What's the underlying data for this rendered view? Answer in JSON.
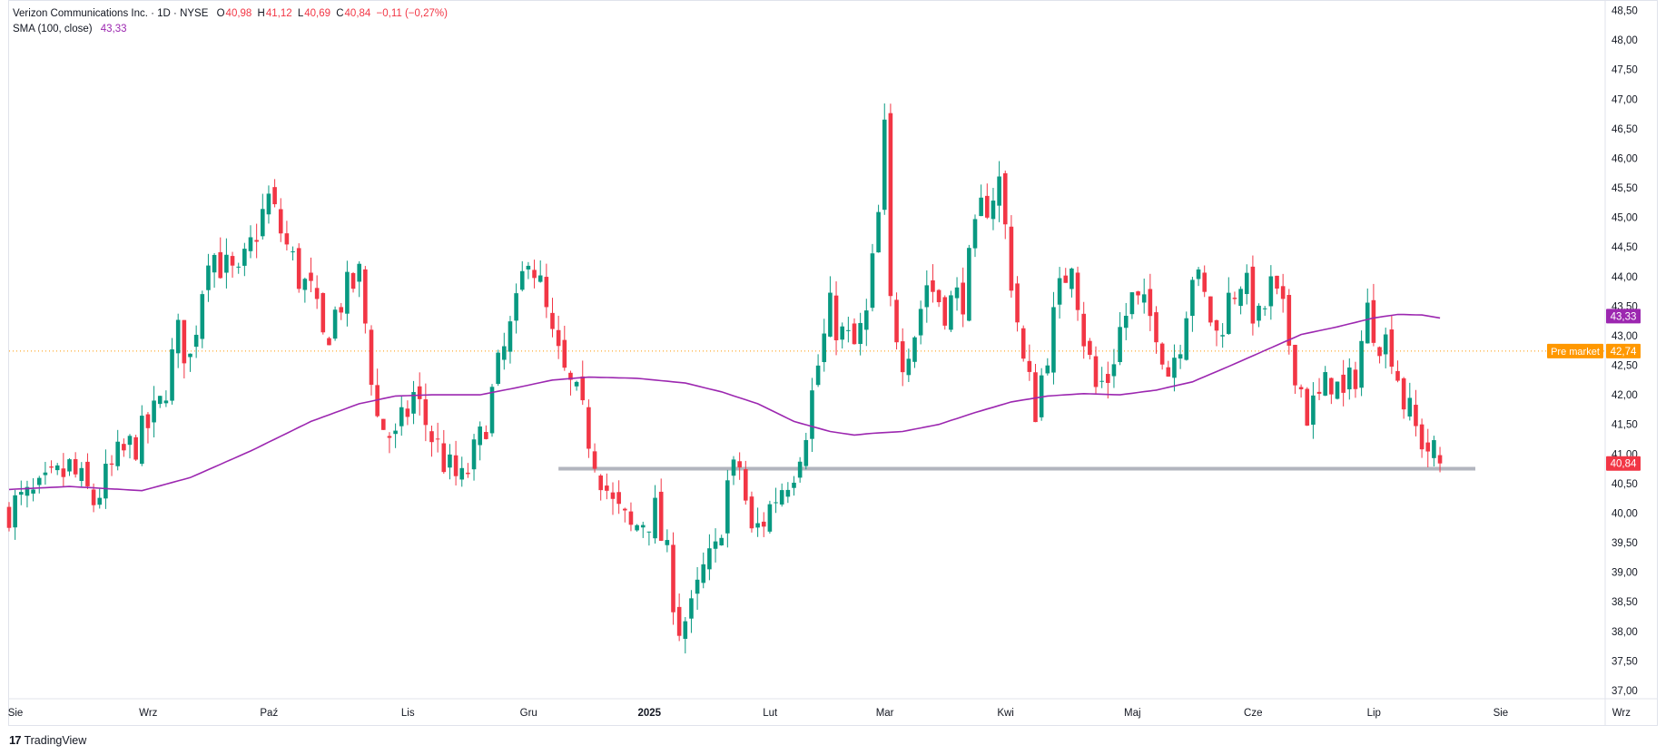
{
  "legend": {
    "title": "Verizon Communications Inc. · 1D · NYSE",
    "open_label": "O",
    "open": "40,98",
    "high_label": "H",
    "high": "41,12",
    "low_label": "L",
    "low": "40,69",
    "close_label": "C",
    "close": "40,84",
    "change": "−0,11 (−0,27%)",
    "sma_label": "SMA (100, close)",
    "sma_value": "43,33"
  },
  "price_tags": {
    "sma": "43,33",
    "premarket_label": "Pre market",
    "premarket": "42,74",
    "last": "40,84"
  },
  "brand": {
    "logo": "17",
    "name": "TradingView"
  },
  "colors": {
    "up": "#089981",
    "down": "#f23645",
    "sma": "#9c27b0",
    "premarket": "#ff9800",
    "support": "#b2b5be",
    "axis_text": "#131722",
    "grid": "#f0f3fa"
  },
  "chart_data": {
    "type": "candlestick",
    "title": "Verizon Communications Inc. · 1D · NYSE",
    "ylim": [
      36.6,
      48.6
    ],
    "y_ticks": [
      "48,50",
      "48,00",
      "47,50",
      "47,00",
      "46,50",
      "46,00",
      "45,50",
      "45,00",
      "44,50",
      "44,00",
      "43,50",
      "43,00",
      "42,50",
      "42,00",
      "41,50",
      "41,00",
      "40,50",
      "40,00",
      "39,50",
      "39,00",
      "38,50",
      "38,00",
      "37,50",
      "37,00"
    ],
    "x_ticks": [
      {
        "label": "Sie",
        "bold": false,
        "idx": 0
      },
      {
        "label": "Wrz",
        "bold": false,
        "idx": 22
      },
      {
        "label": "Paź",
        "bold": false,
        "idx": 42
      },
      {
        "label": "Lis",
        "bold": false,
        "idx": 65
      },
      {
        "label": "Gru",
        "bold": false,
        "idx": 85
      },
      {
        "label": "2025",
        "bold": true,
        "idx": 105
      },
      {
        "label": "Lut",
        "bold": false,
        "idx": 125
      },
      {
        "label": "Mar",
        "bold": false,
        "idx": 144
      },
      {
        "label": "Kwi",
        "bold": false,
        "idx": 164
      },
      {
        "label": "Maj",
        "bold": false,
        "idx": 185
      },
      {
        "label": "Cze",
        "bold": false,
        "idx": 205
      },
      {
        "label": "Lip",
        "bold": false,
        "idx": 225
      },
      {
        "label": "Sie",
        "bold": false,
        "idx": 246
      },
      {
        "label": "Wrz",
        "bold": false,
        "idx": 266
      }
    ],
    "support_level": 40.75,
    "premarket_price": 42.74,
    "sma_last": 43.33,
    "close_path": [
      [
        0,
        40.1
      ],
      [
        5,
        40.3
      ],
      [
        10,
        40.75
      ],
      [
        14,
        40.2
      ],
      [
        18,
        40.9
      ],
      [
        22,
        41.3
      ],
      [
        25,
        41.8
      ],
      [
        28,
        43.0
      ],
      [
        30,
        42.6
      ],
      [
        33,
        44.5
      ],
      [
        36,
        44.1
      ],
      [
        38,
        43.9
      ],
      [
        41,
        44.8
      ],
      [
        43,
        45.3
      ],
      [
        46,
        44.5
      ],
      [
        48,
        44.0
      ],
      [
        50,
        43.7
      ],
      [
        52,
        42.9
      ],
      [
        55,
        43.6
      ],
      [
        58,
        44.0
      ],
      [
        61,
        41.6
      ],
      [
        64,
        41.2
      ],
      [
        67,
        42.0
      ],
      [
        70,
        41.3
      ],
      [
        73,
        40.7
      ],
      [
        75,
        40.5
      ],
      [
        78,
        41.2
      ],
      [
        81,
        42.4
      ],
      [
        84,
        43.4
      ],
      [
        86,
        44.5
      ],
      [
        88,
        43.8
      ],
      [
        90,
        42.9
      ],
      [
        92,
        42.3
      ],
      [
        94,
        41.9
      ],
      [
        96,
        41.3
      ],
      [
        98,
        40.7
      ],
      [
        100,
        40.1
      ],
      [
        103,
        39.7
      ],
      [
        105,
        39.9
      ],
      [
        107,
        40.0
      ],
      [
        109,
        39.2
      ],
      [
        111,
        38.1
      ],
      [
        113,
        38.3
      ],
      [
        115,
        39.0
      ],
      [
        117,
        39.3
      ],
      [
        119,
        40.5
      ],
      [
        121,
        40.8
      ],
      [
        123,
        39.6
      ],
      [
        125,
        39.9
      ],
      [
        127,
        40.3
      ],
      [
        130,
        40.8
      ],
      [
        132,
        41.5
      ],
      [
        134,
        42.5
      ],
      [
        136,
        43.4
      ],
      [
        138,
        43.0
      ],
      [
        140,
        42.8
      ],
      [
        142,
        43.3
      ],
      [
        144,
        45.0
      ],
      [
        145,
        46.4
      ],
      [
        146,
        43.5
      ],
      [
        148,
        42.7
      ],
      [
        150,
        43.1
      ],
      [
        152,
        43.9
      ],
      [
        155,
        43.5
      ],
      [
        158,
        43.7
      ],
      [
        161,
        45.1
      ],
      [
        164,
        45.6
      ],
      [
        166,
        44.0
      ],
      [
        168,
        42.5
      ],
      [
        170,
        41.8
      ],
      [
        172,
        42.8
      ],
      [
        174,
        43.7
      ],
      [
        176,
        44.4
      ],
      [
        178,
        43.0
      ],
      [
        180,
        42.1
      ],
      [
        182,
        42.3
      ],
      [
        184,
        43.1
      ],
      [
        186,
        43.6
      ],
      [
        188,
        43.4
      ],
      [
        190,
        43.2
      ],
      [
        192,
        42.4
      ],
      [
        194,
        43.0
      ],
      [
        196,
        44.1
      ],
      [
        198,
        43.6
      ],
      [
        200,
        43.0
      ],
      [
        202,
        43.6
      ],
      [
        204,
        44.0
      ],
      [
        207,
        43.2
      ],
      [
        209,
        43.8
      ],
      [
        211,
        43.3
      ],
      [
        213,
        42.5
      ],
      [
        215,
        41.7
      ],
      [
        217,
        41.9
      ],
      [
        219,
        42.3
      ],
      [
        221,
        41.9
      ],
      [
        223,
        42.4
      ],
      [
        225,
        43.4
      ],
      [
        227,
        43.0
      ],
      [
        229,
        42.8
      ],
      [
        231,
        41.9
      ],
      [
        233,
        41.4
      ],
      [
        235,
        41.1
      ],
      [
        237,
        40.84
      ]
    ],
    "sma_path": [
      [
        0,
        40.4
      ],
      [
        10,
        40.45
      ],
      [
        22,
        40.38
      ],
      [
        30,
        40.6
      ],
      [
        40,
        41.05
      ],
      [
        50,
        41.55
      ],
      [
        58,
        41.85
      ],
      [
        64,
        41.98
      ],
      [
        70,
        42.0
      ],
      [
        78,
        42.0
      ],
      [
        84,
        42.12
      ],
      [
        90,
        42.25
      ],
      [
        96,
        42.3
      ],
      [
        104,
        42.28
      ],
      [
        112,
        42.2
      ],
      [
        118,
        42.05
      ],
      [
        124,
        41.85
      ],
      [
        130,
        41.55
      ],
      [
        136,
        41.38
      ],
      [
        140,
        41.32
      ],
      [
        143,
        41.35
      ],
      [
        148,
        41.38
      ],
      [
        154,
        41.5
      ],
      [
        160,
        41.7
      ],
      [
        166,
        41.88
      ],
      [
        172,
        41.98
      ],
      [
        178,
        42.02
      ],
      [
        184,
        42.0
      ],
      [
        190,
        42.08
      ],
      [
        196,
        42.22
      ],
      [
        202,
        42.48
      ],
      [
        208,
        42.75
      ],
      [
        214,
        43.02
      ],
      [
        220,
        43.15
      ],
      [
        226,
        43.3
      ],
      [
        230,
        43.36
      ],
      [
        234,
        43.35
      ],
      [
        237,
        43.3
      ]
    ]
  }
}
